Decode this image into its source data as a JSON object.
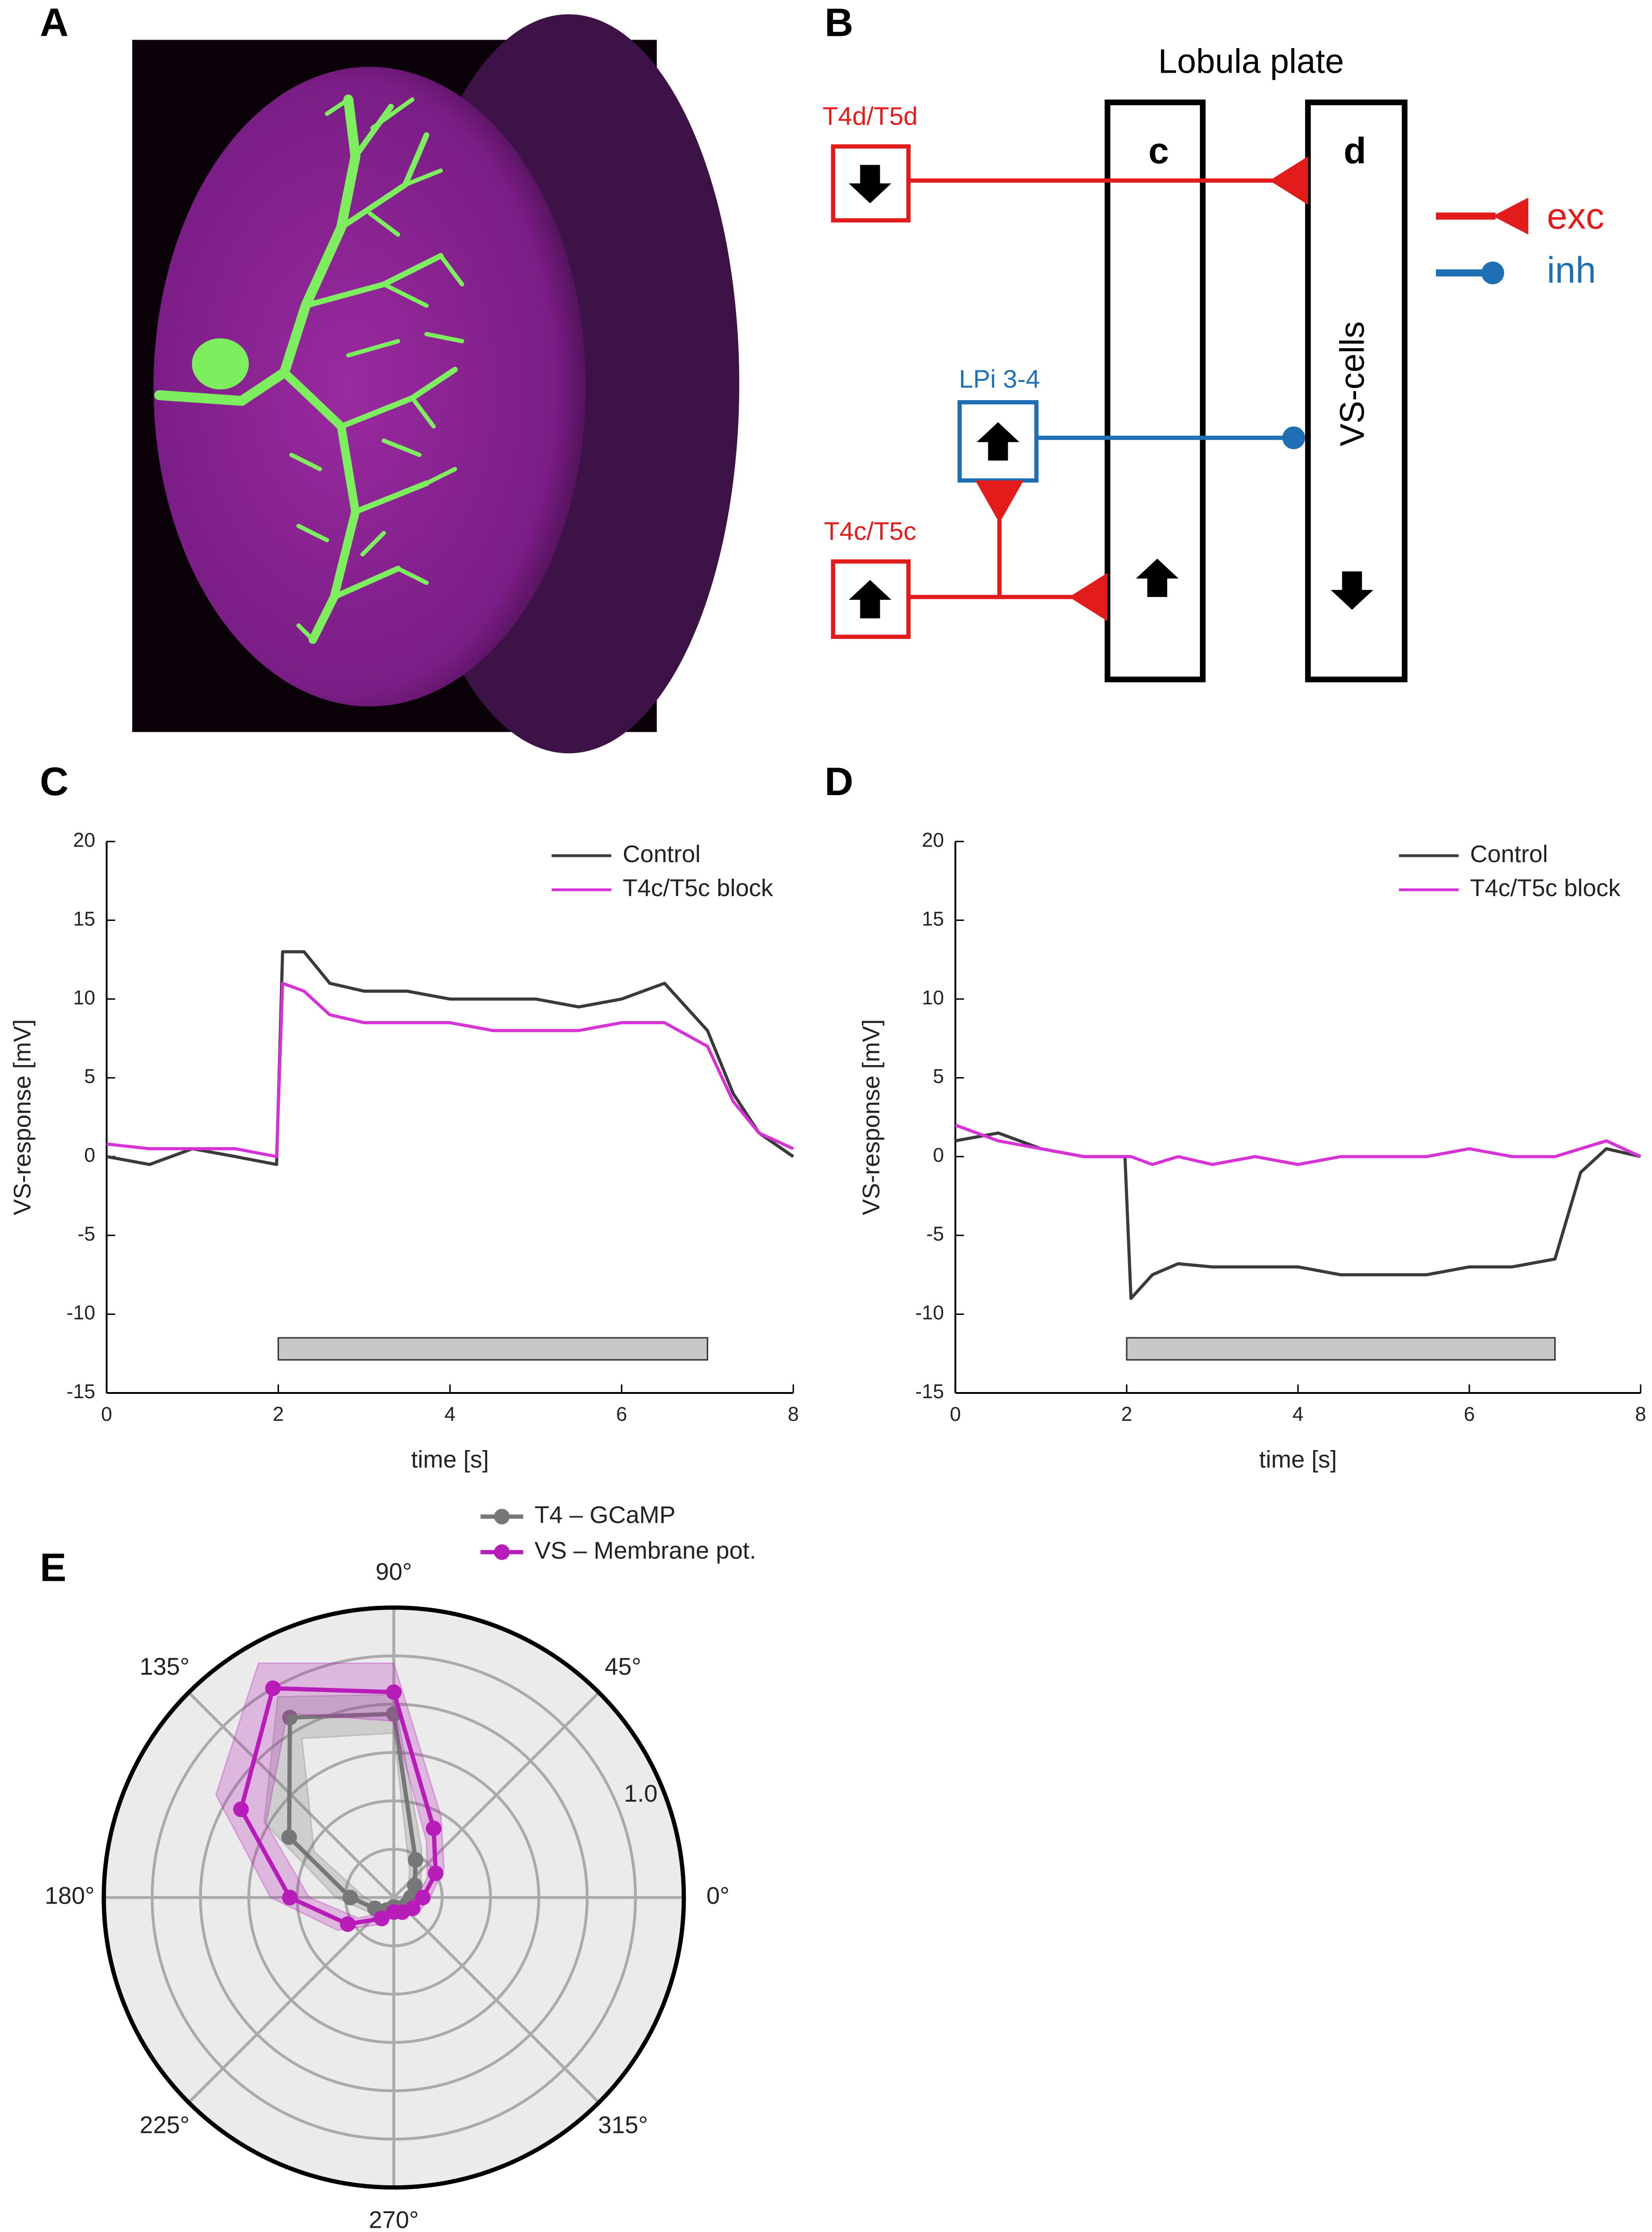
{
  "panel_labels": [
    "A",
    "B",
    "C",
    "D",
    "E"
  ],
  "diagram": {
    "region": "Lobula plate",
    "layer_c": "c",
    "layer_d": "d",
    "vs": "VS-cells",
    "t4d": "T4d/T5d",
    "lpi": "LPi 3-4",
    "t4c": "T4c/T5c",
    "legend_exc": "exc",
    "legend_inh": "inh"
  },
  "chart_data": [
    {
      "type": "line",
      "xlabel": "time [s]",
      "ylabel": "VS-response [mV]",
      "xlim": [
        0,
        8
      ],
      "xticks": [
        0,
        2,
        4,
        6,
        8
      ],
      "ylim": [
        -15,
        20
      ],
      "yticks": [
        -15,
        -10,
        -5,
        0,
        5,
        10,
        15,
        20
      ],
      "legend": "upper right",
      "stimulus": [
        2,
        7
      ],
      "x": [
        0,
        0.5,
        1,
        1.5,
        1.98,
        2.05,
        2.3,
        2.6,
        3,
        3.5,
        4,
        4.5,
        5,
        5.5,
        6,
        6.5,
        7,
        7.3,
        7.6,
        8
      ],
      "series": [
        {
          "name": "Control",
          "color": "#3a3a3a",
          "values": [
            0,
            -0.5,
            0.5,
            0,
            -0.5,
            13,
            13,
            11,
            10.5,
            10.5,
            10,
            10,
            10,
            9.5,
            10,
            11,
            8,
            4,
            1.5,
            0
          ]
        },
        {
          "name": "T4c/T5c block",
          "color": "#d633d6",
          "values": [
            0.8,
            0.5,
            0.5,
            0.5,
            0,
            11,
            10.5,
            9,
            8.5,
            8.5,
            8.5,
            8,
            8,
            8,
            8.5,
            8.5,
            7,
            3.5,
            1.5,
            0.5
          ]
        }
      ]
    },
    {
      "type": "line",
      "xlabel": "time [s]",
      "ylabel": "VS-response [mV]",
      "xlim": [
        0,
        8
      ],
      "xticks": [
        0,
        2,
        4,
        6,
        8
      ],
      "ylim": [
        -15,
        20
      ],
      "yticks": [
        -15,
        -10,
        -5,
        0,
        5,
        10,
        15,
        20
      ],
      "legend": "upper right",
      "stimulus": [
        2,
        7
      ],
      "x": [
        0,
        0.5,
        1,
        1.5,
        1.98,
        2.05,
        2.3,
        2.6,
        3,
        3.5,
        4,
        4.5,
        5,
        5.5,
        6,
        6.5,
        7,
        7.3,
        7.6,
        8
      ],
      "series": [
        {
          "name": "Control",
          "color": "#3a3a3a",
          "values": [
            1,
            1.5,
            0.5,
            0,
            0,
            -9,
            -7.5,
            -6.8,
            -7,
            -7,
            -7,
            -7.5,
            -7.5,
            -7.5,
            -7,
            -7,
            -6.5,
            -1,
            0.5,
            0
          ]
        },
        {
          "name": "T4c/T5c block",
          "color": "#d633d6",
          "values": [
            2,
            1,
            0.5,
            0,
            0,
            0,
            -0.5,
            0,
            -0.5,
            0,
            -0.5,
            0,
            0,
            0,
            0.5,
            0,
            0,
            0.5,
            1,
            0
          ]
        }
      ]
    },
    {
      "type": "polar",
      "rlim": [
        0,
        1.2
      ],
      "rticks": [
        0.2,
        0.4,
        0.6,
        0.8,
        1.0
      ],
      "rlabel": {
        "value": 1.0,
        "label": "1.0"
      },
      "thetaticks": [
        {
          "value": 0,
          "label": "0°"
        },
        {
          "value": 45,
          "label": "45°"
        },
        {
          "value": 90,
          "label": "90°"
        },
        {
          "value": 135,
          "label": "135°"
        },
        {
          "value": 180,
          "label": "180°"
        },
        {
          "value": 225,
          "label": "225°"
        },
        {
          "value": 270,
          "label": "270°"
        },
        {
          "value": 315,
          "label": "315°"
        }
      ],
      "theta": [
        0,
        30,
        60,
        90,
        120,
        150,
        180,
        210,
        240,
        270,
        300,
        330
      ],
      "series": [
        {
          "name": "T4 – GCaMP",
          "color": "#777777",
          "values": [
            0.07,
            0.1,
            0.18,
            0.76,
            0.86,
            0.5,
            0.18,
            0.09,
            0.06,
            0.04,
            0.05,
            0.06
          ],
          "errors": [
            0.02,
            0.03,
            0.05,
            0.08,
            0.1,
            0.12,
            0.06,
            0.03,
            0.02,
            0.02,
            0.02,
            0.02
          ]
        },
        {
          "name": "VS – Membrane pot.",
          "color": "#b81cb8",
          "values": [
            0.12,
            0.2,
            0.33,
            0.85,
            1.0,
            0.73,
            0.43,
            0.22,
            0.1,
            0.06,
            0.07,
            0.09
          ],
          "errors": [
            0.03,
            0.04,
            0.06,
            0.12,
            0.12,
            0.12,
            0.08,
            0.05,
            0.03,
            0.02,
            0.02,
            0.03
          ]
        }
      ]
    }
  ]
}
